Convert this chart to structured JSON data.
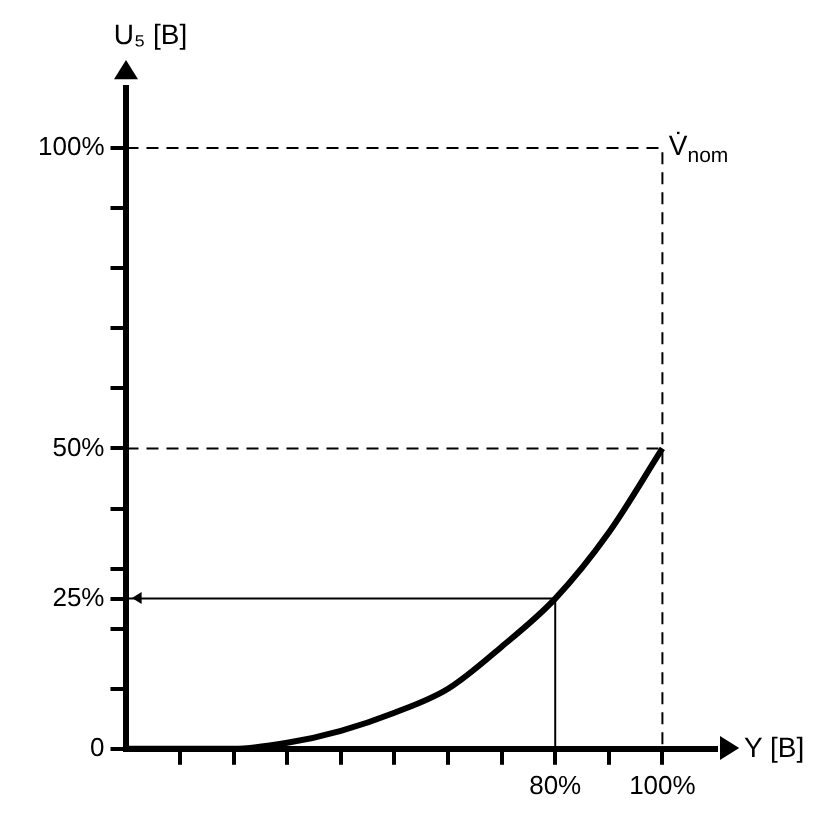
{
  "chart_data": {
    "type": "line",
    "xlabel": "Y [B]",
    "ylabel": "U₅ [B]",
    "xlim": [
      0,
      110
    ],
    "ylim": [
      0,
      110
    ],
    "xticks": [
      {
        "value": 10,
        "label": null
      },
      {
        "value": 20,
        "label": null
      },
      {
        "value": 30,
        "label": null
      },
      {
        "value": 40,
        "label": null
      },
      {
        "value": 50,
        "label": null
      },
      {
        "value": 60,
        "label": null
      },
      {
        "value": 70,
        "label": null
      },
      {
        "value": 80,
        "label": "80%"
      },
      {
        "value": 90,
        "label": null
      },
      {
        "value": 100,
        "label": "100%"
      }
    ],
    "yticks": [
      {
        "value": 0,
        "label": "0"
      },
      {
        "value": 10,
        "label": null
      },
      {
        "value": 20,
        "label": null
      },
      {
        "value": 25,
        "label": "25%"
      },
      {
        "value": 30,
        "label": null
      },
      {
        "value": 40,
        "label": null
      },
      {
        "value": 50,
        "label": "50%"
      },
      {
        "value": 60,
        "label": null
      },
      {
        "value": 70,
        "label": null
      },
      {
        "value": 80,
        "label": null
      },
      {
        "value": 90,
        "label": null
      },
      {
        "value": 100,
        "label": "100%"
      }
    ],
    "series": [
      {
        "color": "#000000",
        "x": [
          0,
          10,
          20,
          30,
          40,
          50,
          60,
          70,
          80,
          90,
          100
        ],
        "values": [
          0,
          0,
          0,
          1,
          3,
          6,
          10,
          17,
          25,
          36,
          50
        ]
      },
      {
        "color": "#000000",
        "x": [
          80,
          80,
          0
        ],
        "values": [
          0,
          25,
          25
        ]
      },
      {
        "color": "#000000",
        "line_style": "dashed",
        "x": [
          0,
          100,
          100
        ],
        "values": [
          100,
          100,
          0
        ]
      },
      {
        "color": "#000000",
        "line_style": "dashed",
        "x": [
          0,
          100
        ],
        "values": [
          50,
          50
        ]
      }
    ],
    "annotations": [
      "V̇$_{nom}$"
    ],
    "grid": false,
    "legend": false,
    "marker": "none",
    "line_style": "solid"
  }
}
